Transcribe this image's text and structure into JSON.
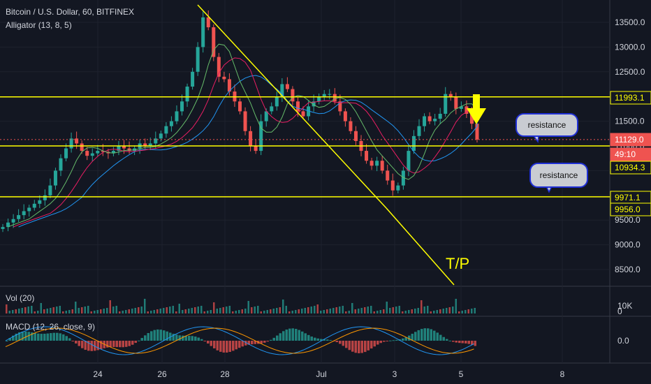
{
  "header": {
    "symbol_line": "Bitcoin / U.S. Dollar, 60, BITFINEX",
    "indicator_line": "Alligator (13, 8, 5)"
  },
  "volume_pane": {
    "label": "Vol (20)",
    "axis_labels": [
      "10K",
      "0"
    ]
  },
  "macd_pane": {
    "label": "MACD (12, 26, close, 9)",
    "axis_labels": [
      "0.0"
    ]
  },
  "annotations": {
    "resistance_1": "resistance",
    "resistance_2": "resistance",
    "tp_label": "T/P"
  },
  "price_badges": [
    {
      "label": "11993.1",
      "value": 11993.1,
      "bg": "#131722",
      "fg": "#ffff00",
      "border": "#ffff00"
    },
    {
      "label": "11129.0",
      "value": 11129.0,
      "bg": "#ef5350",
      "fg": "#ffffff",
      "border": "#ef5350"
    },
    {
      "label": "49:10",
      "value": 10990,
      "bg": "#ef5350",
      "fg": "#ffffff",
      "border": "#ef5350"
    },
    {
      "label": "10934.3",
      "value": 10934.3,
      "bg": "#131722",
      "fg": "#ffff00",
      "border": "#ffff00"
    },
    {
      "label": "9971.1",
      "value": 9971.1,
      "bg": "#131722",
      "fg": "#ffff00",
      "border": "#ffff00"
    },
    {
      "label": "9956.0",
      "value": 9956.0,
      "bg": "#131722",
      "fg": "#ffff00",
      "border": "#ffff00"
    }
  ],
  "colors": {
    "background": "#131722",
    "up_candle": "#26a69a",
    "down_candle": "#ef5350",
    "drawing": "#ffff00",
    "grid": "#1e222d",
    "axis_text": "#d1d4dc",
    "callout_border": "#1f2fd6"
  },
  "chart_data": {
    "type": "candlestick",
    "price_axis": {
      "min": 8500,
      "max": 13500,
      "ticks": [
        13500.0,
        13000.0,
        12500.0,
        12000.0,
        11500.0,
        11000.0,
        10500.0,
        10000.0,
        9500.0,
        9000.0,
        8500.0
      ],
      "tick_labels": [
        "13500.0",
        "13000.0",
        "12500.0",
        "12000.0",
        "11500.0",
        "11000.0",
        "10500.0",
        "10000.0",
        "9500.0",
        "9000.0",
        "8500.0"
      ]
    },
    "x_axis": {
      "tick_labels": [
        "24",
        "26",
        "28",
        "Jul",
        "3",
        "5",
        "8"
      ]
    },
    "horizontal_levels": [
      11993.1,
      11000,
      9971.1
    ],
    "close_line": 11129.0,
    "trend_lines": [
      {
        "from": [
          "27",
          13850
        ],
        "to": [
          "Jul 2",
          9950
        ]
      },
      {
        "from": [
          "Jul 2",
          9950
        ],
        "to": [
          "Jul 4",
          8350
        ]
      }
    ],
    "approx_closes": [
      9360,
      9450,
      9520,
      9600,
      9680,
      9750,
      9830,
      9900,
      10000,
      10200,
      10500,
      10750,
      10950,
      11150,
      11050,
      10900,
      10800,
      10850,
      10900,
      10880,
      10850,
      10900,
      11000,
      10950,
      10900,
      10950,
      11050,
      11000,
      11050,
      11150,
      11250,
      11400,
      11500,
      11700,
      11900,
      12200,
      12500,
      13000,
      13600,
      13400,
      12800,
      12400,
      12350,
      12100,
      11900,
      11700,
      11300,
      11000,
      10900,
      11500,
      11700,
      11800,
      12000,
      12250,
      12150,
      11900,
      11700,
      11600,
      11800,
      11900,
      12000,
      12050,
      12050,
      11900,
      11700,
      11500,
      11300,
      11100,
      10900,
      10700,
      10600,
      10700,
      10500,
      10300,
      10100,
      10200,
      10500,
      10900,
      11200,
      11400,
      11600,
      11500,
      11550,
      11650,
      12050,
      12000,
      11750,
      11800,
      11650,
      11450,
      11129
    ]
  }
}
